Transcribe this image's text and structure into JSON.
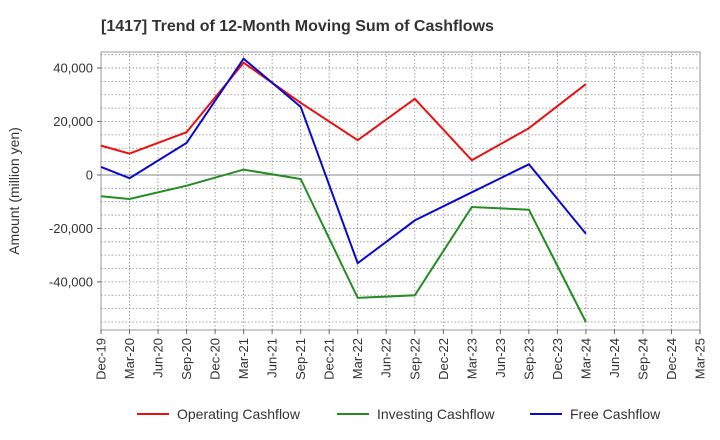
{
  "chart_data": {
    "type": "line",
    "title": "[1417]  Trend of 12-Month Moving Sum of Cashflows",
    "xlabel": "",
    "ylabel": "Amount (million yen)",
    "ylim": [
      -58000,
      46000
    ],
    "yticks": [
      -40000,
      -20000,
      0,
      20000,
      40000
    ],
    "ytick_labels": [
      "-40,000",
      "-20,000",
      "0",
      "20,000",
      "40,000"
    ],
    "categories": [
      "Dec-19",
      "Mar-20",
      "Jun-20",
      "Sep-20",
      "Dec-20",
      "Mar-21",
      "Jun-21",
      "Sep-21",
      "Dec-21",
      "Mar-22",
      "Jun-22",
      "Sep-22",
      "Dec-22",
      "Mar-23",
      "Jun-23",
      "Sep-23",
      "Dec-23",
      "Mar-24",
      "Jun-24",
      "Sep-24",
      "Dec-24",
      "Mar-25"
    ],
    "grid": true,
    "legend_position": "bottom",
    "series": [
      {
        "name": "Operating Cashflow",
        "color": "#e8110f",
        "points": [
          [
            "Dec-19",
            11000
          ],
          [
            "Mar-20",
            8000
          ],
          [
            "Sep-20",
            16000
          ],
          [
            "Mar-21",
            42000
          ],
          [
            "Sep-21",
            27000
          ],
          [
            "Mar-22",
            13000
          ],
          [
            "Sep-22",
            28500
          ],
          [
            "Mar-23",
            5500
          ],
          [
            "Sep-23",
            17500
          ],
          [
            "Mar-24",
            34000
          ]
        ]
      },
      {
        "name": "Investing Cashflow",
        "color": "#238c23",
        "points": [
          [
            "Dec-19",
            -8000
          ],
          [
            "Mar-20",
            -9000
          ],
          [
            "Sep-20",
            -4000
          ],
          [
            "Mar-21",
            2000
          ],
          [
            "Sep-21",
            -1500
          ],
          [
            "Mar-22",
            -46000
          ],
          [
            "Sep-22",
            -45000
          ],
          [
            "Mar-23",
            -12000
          ],
          [
            "Sep-23",
            -13000
          ],
          [
            "Mar-24",
            -55000
          ]
        ]
      },
      {
        "name": "Free Cashflow",
        "color": "#0a0acc",
        "points": [
          [
            "Dec-19",
            3000
          ],
          [
            "Mar-20",
            -1200
          ],
          [
            "Sep-20",
            12000
          ],
          [
            "Mar-21",
            43500
          ],
          [
            "Sep-21",
            25500
          ],
          [
            "Mar-22",
            -33000
          ],
          [
            "Sep-22",
            -17000
          ],
          [
            "Mar-23",
            -6500
          ],
          [
            "Sep-23",
            4000
          ],
          [
            "Mar-24",
            -22000
          ]
        ]
      }
    ]
  }
}
